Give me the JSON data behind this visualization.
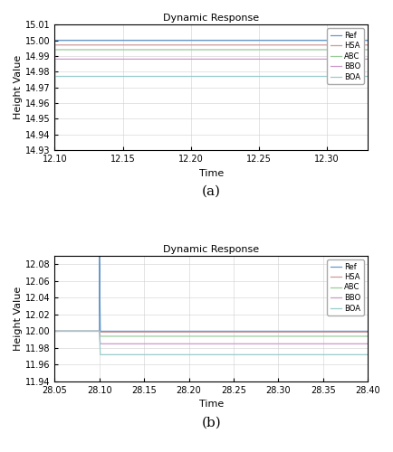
{
  "title": "Dynamic Response",
  "ylabel": "Height Value",
  "xlabel": "Time",
  "legend_labels": [
    "Ref",
    "HSA",
    "ABC",
    "BBO",
    "BOA"
  ],
  "line_colors": [
    "#6699cc",
    "#cc9999",
    "#99cc99",
    "#cc99cc",
    "#99cccc"
  ],
  "plot_a": {
    "t_start": 12.1,
    "t_end": 12.33,
    "t_disturbance": 12.1,
    "xlim": [
      12.1,
      12.33
    ],
    "ylim": [
      14.93,
      15.01
    ],
    "yticks": [
      14.93,
      14.94,
      14.95,
      14.96,
      14.97,
      14.98,
      14.99,
      15.0,
      15.01
    ],
    "xticks": [
      12.1,
      12.15,
      12.2,
      12.25,
      12.3
    ],
    "ref_value": 15.0,
    "steady_values": [
      14.997,
      14.994,
      14.988,
      14.977
    ],
    "init_value": 14.93,
    "spike_top": 15.0
  },
  "plot_b": {
    "t_start": 28.05,
    "t_end": 28.4,
    "t_disturbance": 28.1,
    "xlim": [
      28.05,
      28.4
    ],
    "ylim": [
      11.94,
      12.09
    ],
    "yticks": [
      11.94,
      11.96,
      11.98,
      12.0,
      12.02,
      12.04,
      12.06,
      12.08
    ],
    "xticks": [
      28.05,
      28.1,
      28.15,
      28.2,
      28.25,
      28.3,
      28.35,
      28.4
    ],
    "ref_value": 12.0,
    "steady_values": [
      11.999,
      11.994,
      11.985,
      11.972
    ],
    "init_value": 12.0,
    "spike_top": 12.09
  },
  "subplot_labels": [
    "(a)",
    "(b)"
  ],
  "background_color": "#ffffff",
  "grid_color": "#d0d0d0",
  "tick_fontsize": 7,
  "label_fontsize": 8,
  "title_fontsize": 8,
  "legend_fontsize": 6
}
